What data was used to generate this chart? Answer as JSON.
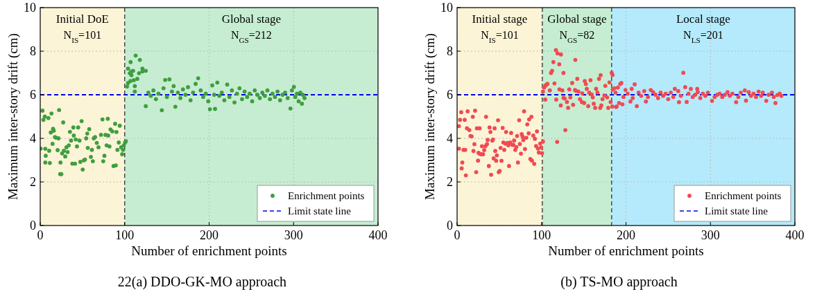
{
  "chart_data": [
    {
      "type": "scatter",
      "title": "22(a) DDO-GK-MO approach",
      "xlabel": "Number of enrichment points",
      "ylabel": "Maximum inter-story drift (cm)",
      "xlim": [
        0,
        400
      ],
      "ylim": [
        0,
        10
      ],
      "xticks": [
        0,
        100,
        200,
        300,
        400
      ],
      "yticks": [
        0,
        2,
        4,
        6,
        8,
        10
      ],
      "grid": true,
      "legend": "bottom right",
      "marker": "circle",
      "bands": [
        {
          "axis": "x",
          "from": 0,
          "to": 100,
          "label": "Initial DoE",
          "color": "#fcf4d6"
        },
        {
          "axis": "x",
          "from": 100,
          "to": 400,
          "label": "Global stage",
          "color": "#c6edd1"
        }
      ],
      "ref_lines": [
        {
          "axis": "y",
          "value": 6,
          "label": "Limit state line",
          "color": "#0000ee",
          "line_style": "dashed"
        },
        {
          "axis": "x",
          "value": 100,
          "color": "#333333",
          "line_style": "dashed"
        }
      ],
      "annotations": [
        "N$_{IS}$=101",
        "N$_{GS}$=212"
      ],
      "series": [
        {
          "name": "Enrichment points",
          "color": "#3f9e3f",
          "x": [
            0.5,
            2.7,
            3.8,
            5.4,
            6,
            6.5,
            6,
            9.7,
            10.6,
            11.4,
            12.5,
            13.3,
            15.2,
            16,
            14.6,
            17.4,
            18.7,
            20.6,
            21.7,
            22.3,
            23.6,
            25,
            24,
            26,
            27.2,
            28,
            29.6,
            31,
            32.4,
            33.8,
            35.2,
            36.5,
            38,
            39.2,
            39.7,
            41.2,
            42,
            43.5,
            44.9,
            46.5,
            47.5,
            49,
            50.3,
            51.7,
            53,
            54.4,
            55.7,
            56.3,
            58,
            60,
            61.2,
            62.3,
            63.4,
            65,
            67,
            69,
            72,
            73.7,
            74.6,
            76,
            77.3,
            78.6,
            80,
            80.5,
            82,
            83.2,
            85.4,
            86.8,
            89.5,
            88.7,
            90.3,
            91.4,
            93,
            94.2,
            95.8,
            97,
            98,
            99,
            100.5,
            101.4,
            102.8,
            104,
            104,
            106,
            106.8,
            107,
            108,
            108,
            110,
            110.8,
            112,
            112,
            113,
            115,
            117,
            118,
            121,
            121,
            125,
            125,
            128,
            131,
            134,
            137,
            140,
            144,
            146,
            148,
            150,
            153,
            156,
            158,
            160,
            163,
            166,
            169,
            172,
            175,
            178,
            181,
            184,
            187,
            190,
            193,
            196,
            199,
            200.9,
            203.7,
            206,
            207,
            209.7,
            212,
            215,
            218,
            221.4,
            224,
            227,
            230,
            233,
            236,
            239,
            242,
            245,
            248,
            251,
            254,
            257,
            260,
            263,
            266,
            269,
            272,
            275,
            278,
            281,
            284,
            287,
            290,
            293,
            296.3,
            298,
            300.4,
            302,
            304,
            306,
            308,
            309.9,
            311,
            313
          ],
          "values": [
            3.53,
            5.27,
            4.85,
            5.0,
            3.52,
            3.2,
            2.89,
            4.93,
            3.43,
            2.87,
            4.27,
            5.14,
            4.44,
            4.35,
            3.75,
            4.06,
            4.03,
            3.46,
            4.0,
            5.3,
            2.36,
            2.36,
            2.89,
            3.31,
            4.73,
            3.43,
            3.17,
            3.59,
            3.37,
            3.68,
            4.3,
            3.9,
            2.84,
            4.5,
            4.13,
            2.84,
            3.95,
            3.63,
            4.5,
            3.9,
            2.92,
            4.79,
            2.57,
            2.99,
            3.03,
            4.0,
            4.22,
            3.56,
            4.42,
            3.15,
            3.47,
            2.95,
            4.0,
            4.06,
            3.79,
            3.59,
            4.16,
            4.87,
            2.95,
            3.2,
            4.16,
            3.68,
            4.9,
            4.13,
            3.63,
            4.41,
            4.32,
            2.73,
            2.76,
            4.67,
            4.29,
            3.47,
            3.81,
            4.58,
            3.59,
            3.27,
            3.47,
            3.68,
            3.81,
            3.87,
            6.38,
            6.54,
            7.2,
            6.99,
            6.63,
            7.5,
            7.07,
            6.9,
            7.1,
            6.67,
            6.4,
            6.15,
            7.8,
            6.73,
            6.99,
            7.6,
            7.07,
            7.2,
            7.1,
            5.48,
            6.1,
            5.95,
            6.2,
            5.8,
            6.05,
            5.29,
            6.3,
            6.68,
            5.9,
            6.71,
            6.15,
            6.4,
            5.45,
            6.1,
            5.85,
            6.25,
            6.0,
            6.35,
            5.75,
            6.1,
            6.5,
            6.76,
            6.2,
            5.9,
            6.05,
            5.7,
            5.34,
            6.43,
            6.0,
            5.35,
            6.56,
            5.95,
            6.1,
            5.75,
            6.47,
            5.9,
            6.2,
            5.65,
            6.05,
            6.3,
            5.8,
            6.15,
            5.9,
            6.05,
            5.7,
            6.2,
            6.0,
            5.85,
            6.1,
            5.95,
            6.2,
            5.8,
            6.05,
            5.9,
            6.15,
            5.75,
            6.0,
            6.1,
            5.85,
            5.37,
            6.2,
            6.36,
            5.9,
            6.05,
            5.7,
            6.1,
            5.59,
            6.0,
            5.85
          ]
        }
      ]
    },
    {
      "type": "scatter",
      "title": "(b) TS-MO approach",
      "xlabel": "Number of enrichment points",
      "ylabel": "Maximum inter-story drift (cm)",
      "xlim": [
        0,
        400
      ],
      "ylim": [
        0,
        10
      ],
      "xticks": [
        0,
        100,
        200,
        300,
        400
      ],
      "yticks": [
        0,
        2,
        4,
        6,
        8,
        10
      ],
      "grid": true,
      "legend": "bottom right",
      "marker": "circle",
      "bands": [
        {
          "axis": "x",
          "from": 0,
          "to": 101,
          "label": "Initial stage",
          "color": "#fcf4d6"
        },
        {
          "axis": "x",
          "from": 101,
          "to": 183,
          "label": "Global stage",
          "color": "#c6edd1"
        },
        {
          "axis": "x",
          "from": 183,
          "to": 400,
          "label": "Local stage",
          "color": "#b4eafb"
        }
      ],
      "ref_lines": [
        {
          "axis": "y",
          "value": 6,
          "label": "Limit state line",
          "color": "#0000ee",
          "line_style": "dashed"
        },
        {
          "axis": "x",
          "value": 101,
          "color": "#333333",
          "line_style": "dashed"
        },
        {
          "axis": "x",
          "value": 183,
          "color": "#333333",
          "line_style": "dashed"
        }
      ],
      "annotations": [
        "N$_{IS}$=101",
        "N$_{GS}$=82",
        "N$_{LS}$=201"
      ],
      "series": [
        {
          "name": "Enrichment points",
          "color": "#f04a52",
          "x": [
            2.2,
            2.2,
            3.5,
            4.9,
            6.2,
            5.4,
            7.6,
            9,
            9.6,
            10.4,
            11.7,
            12.5,
            14.5,
            15.9,
            17.2,
            18.6,
            19.4,
            20.5,
            21.3,
            22.6,
            23.5,
            24.8,
            25.3,
            26.7,
            26.7,
            28.6,
            29.4,
            30.8,
            32.1,
            33.5,
            34.3,
            35.4,
            36.2,
            37.6,
            38.4,
            39.5,
            40.3,
            41.7,
            42.5,
            43.3,
            44.4,
            45.2,
            46.3,
            47.1,
            48.5,
            49.3,
            50.4,
            51.5,
            52.6,
            54,
            54.8,
            55.9,
            57.2,
            58,
            59.4,
            60.7,
            61.5,
            62.9,
            64,
            65.6,
            66.7,
            67.5,
            68.9,
            70.2,
            71,
            72.1,
            73.5,
            74.3,
            75.6,
            76.5,
            77.6,
            78.4,
            79.3,
            80.4,
            82,
            83.1,
            84.8,
            85.3,
            86.7,
            88,
            88.6,
            90.2,
            91.3,
            92.1,
            93.5,
            94.6,
            95.7,
            96.8,
            98.4,
            99.5,
            100.6,
            101.7,
            101.7,
            103,
            104.4,
            105.7,
            107,
            104.4,
            109.8,
            111.2,
            112.5,
            115.3,
            117.4,
            118.5,
            121.2,
            122.8,
            124.7,
            126,
            127.4,
            128.2,
            130.1,
            131.5,
            132.8,
            134.1,
            136.3,
            137.4,
            139.6,
            140.9,
            142.3,
            143.6,
            145.5,
            147.7,
            148.2,
            150.4,
            151.2,
            152.5,
            153.6,
            155.3,
            156.4,
            158,
            159.4,
            160.7,
            161.8,
            163.5,
            164.6,
            166.2,
            168.1,
            169.5,
            170.8,
            172.2,
            174.4,
            175.5,
            177.7,
            179,
            180.4,
            181.8,
            114,
            117,
            119,
            121,
            123,
            126,
            140,
            170,
            183.1,
            184.4,
            186.3,
            187.6,
            183.8,
            188.2,
            193.1,
            191.8,
            184.1,
            190.4,
            194.5,
            199.4,
            206.7,
            210.3,
            212.8,
            189,
            195.8,
            205.3,
            221.6,
            229.3,
            223.6,
            232.1,
            267.9,
            270.1,
            257.8,
            261.9,
            262.8,
            271.9,
            276.8,
            284.4,
            285,
            301.9,
            320.3,
            330.4,
            340.7,
            345.4,
            342.1,
            362,
            366.1,
            372.9,
            377,
            379.2,
            197,
            202,
            208,
            215,
            218,
            226,
            235,
            238,
            241,
            244,
            247,
            250,
            253,
            256,
            265,
            274,
            279,
            282,
            288,
            291,
            294,
            297,
            305,
            308,
            311,
            314,
            317,
            323,
            326,
            333,
            336,
            348,
            351,
            354,
            357,
            360,
            369,
            375,
            382,
            384
          ],
          "values": [
            3.53,
            4.56,
            4.85,
            5.2,
            2.89,
            2.62,
            3.47,
            4.85,
            3.47,
            2.3,
            4.46,
            5.24,
            4.38,
            4.11,
            4.09,
            4.99,
            3.42,
            3.73,
            5.27,
            2.45,
            4.46,
            2.98,
            3.34,
            4.46,
            3.29,
            3.27,
            3.64,
            3.27,
            3.46,
            3.64,
            4.99,
            3.74,
            3.93,
            2.73,
            4.5,
            4.29,
            2.33,
            3.9,
            3.95,
            3.08,
            4.46,
            3.42,
            2.97,
            3.22,
            4.83,
            2.45,
            2.5,
            3.56,
            2.97,
            4.48,
            3.81,
            3.47,
            3.76,
            4.29,
            3.79,
            3.68,
            2.73,
            3.81,
            4.25,
            3.7,
            3.7,
            3.9,
            3.47,
            3.6,
            4.11,
            2.89,
            4.83,
            3.74,
            3.3,
            4.19,
            4.08,
            3.92,
            5.24,
            3.51,
            4.03,
            4.64,
            4.23,
            4.87,
            3.05,
            4.99,
            2.98,
            4.13,
            2.83,
            3.98,
            3.65,
            4.32,
            3.53,
            3.35,
            3.76,
            3.58,
            3.32,
            3.85,
            6.15,
            6.33,
            6.41,
            6.46,
            6.5,
            5.78,
            6.2,
            7.0,
            7.1,
            6.52,
            5.78,
            3.84,
            6.25,
            5.51,
            6.2,
            5.86,
            5.83,
            4.38,
            5.67,
            5.4,
            6.25,
            5.88,
            6.54,
            5.54,
            6.22,
            6.18,
            6.73,
            6.15,
            5.8,
            5.67,
            6.07,
            5.62,
            6.63,
            6.49,
            6.27,
            5.48,
            6.1,
            6.67,
            6.01,
            5.88,
            5.59,
            5.4,
            6.27,
            6.1,
            6.73,
            5.4,
            5.51,
            5.8,
            5.97,
            6.41,
            5.88,
            5.4,
            6.57,
            5.67,
            7.5,
            8.05,
            7.9,
            7.4,
            7.85,
            7.0,
            7.6,
            6.9,
            7.01,
            6.25,
            6.3,
            6.1,
            5.46,
            5.44,
            6.49,
            5.62,
            6.91,
            6.33,
            6.54,
            6.22,
            6.27,
            6.48,
            5.48,
            5.46,
            5.56,
            5.69,
            6.17,
            6.22,
            5.69,
            6.12,
            7.01,
            6.35,
            6.27,
            6.17,
            5.66,
            5.67,
            6.27,
            6.27,
            6.12,
            5.72,
            6.12,
            5.66,
            6.2,
            6.12,
            5.73,
            6.1,
            5.72,
            6.1,
            5.62,
            5.99,
            5.9,
            6.05,
            5.85,
            6.1,
            5.95,
            5.9,
            6.0,
            5.85,
            6.1,
            5.95,
            6.05,
            5.8,
            6.1,
            5.9,
            5.95,
            6.05,
            5.9,
            6.0,
            5.85,
            6.05,
            5.95,
            6.1,
            5.9,
            6.0,
            6.05,
            5.9,
            6.0,
            5.95,
            6.05,
            5.9,
            6.1,
            5.95,
            6.05,
            5.9,
            6.15,
            5.95,
            6.0,
            5.9,
            6.05,
            5.95
          ]
        }
      ]
    }
  ]
}
